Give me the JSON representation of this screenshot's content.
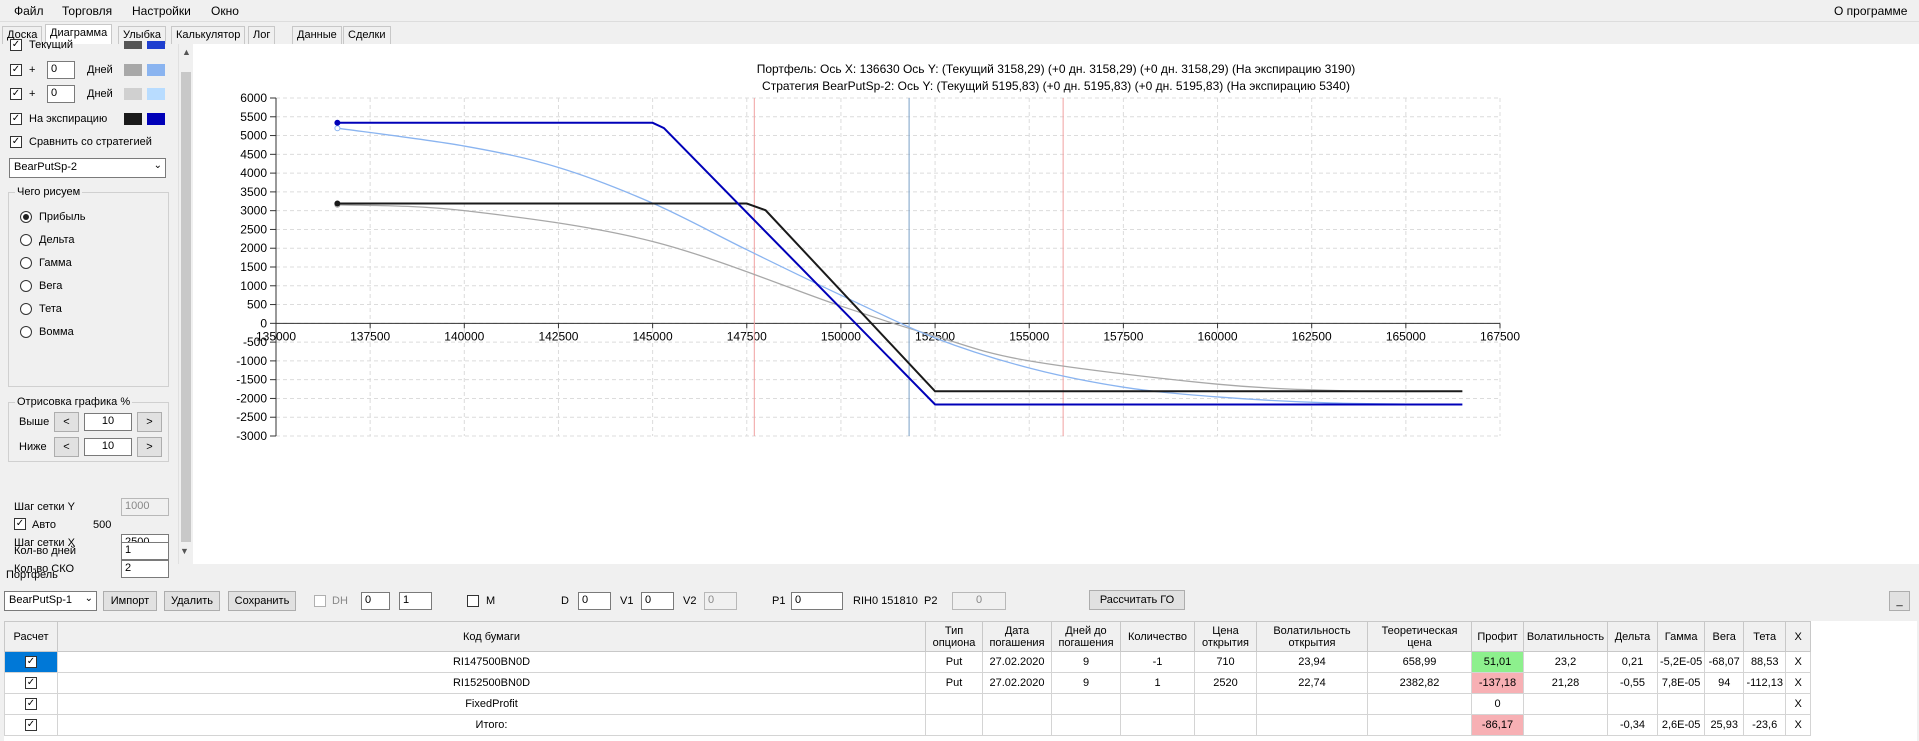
{
  "menu": {
    "items": [
      "Файл",
      "Торговля",
      "Настройки",
      "Окно"
    ],
    "about": "О программе"
  },
  "tabs": [
    "Доска",
    "Диаграмма",
    "Улыбка",
    "Калькулятор",
    "Лог",
    "Данные",
    "Сделки"
  ],
  "active_tab": "Диаграмма",
  "left_panel": {
    "rows": [
      {
        "label": "Текущий",
        "checked": true,
        "color_a": "#555555",
        "color_b": "#1f3fcf"
      },
      {
        "plus": "+",
        "days": "0",
        "days_label": "Дней",
        "checked": true,
        "color_a": "#a8a8a8",
        "color_b": "#8ab4f0"
      },
      {
        "plus": "+",
        "days": "0",
        "days_label": "Дней",
        "checked": true,
        "color_a": "#d0d0d0",
        "color_b": "#b8dcff"
      },
      {
        "label": "На экспирацию",
        "checked": true,
        "color_a": "#1a1a1a",
        "color_b": "#0000b8"
      }
    ],
    "compare_label": "Сравнить со стратегией",
    "strategy_select": "BearPutSp-2",
    "draw_group_title": "Чего рисуем",
    "draw_options": [
      "Прибыль",
      "Дельта",
      "Гамма",
      "Вега",
      "Тета",
      "Вомма"
    ],
    "draw_selected": "Прибыль",
    "render_group_title": "Отрисовка графика %",
    "above_label": "Выше",
    "above_value": "10",
    "below_label": "Ниже",
    "below_value": "10",
    "prev": "<",
    "next": ">",
    "grid_y_label": "Шаг сетки Y",
    "grid_y_value": "1000",
    "auto_label": "Авто",
    "auto_value": "500",
    "grid_x_label": "Шаг сетки X",
    "grid_x_value": "2500",
    "sko_label": "Кол-во СКО",
    "sko_value": "2",
    "days_label": "Кол-во дней",
    "days_value": "1"
  },
  "chart_header": {
    "line1": "Портфель: Ось X: 136630 Ось Y:  (Текущий 3158,29)  (+0 дн. 3158,29)  (+0 дн. 3158,29)  (На экспирацию 3190)",
    "line2": "Стратегия BearPutSp-2:  Ось Y:  (Текущий 5195,83)  (+0 дн. 5195,83)  (+0 дн. 5195,83)  (На экспирацию 5340)"
  },
  "chart_data": {
    "type": "line",
    "xlim": [
      135000,
      167500
    ],
    "ylim": [
      -3000,
      6000
    ],
    "x_ticks": [
      135000,
      137500,
      140000,
      142500,
      145000,
      147500,
      150000,
      152500,
      155000,
      157500,
      160000,
      162500,
      165000,
      167500
    ],
    "y_ticks": [
      6000,
      5500,
      5000,
      4500,
      4000,
      3500,
      3000,
      2500,
      2000,
      1500,
      1000,
      500,
      0,
      -500,
      -1000,
      -1500,
      -2000,
      -2500,
      -3000
    ],
    "grid": true,
    "vertical_markers": [
      {
        "x": 147700,
        "color": "#f0a0a0"
      },
      {
        "x": 151810,
        "color": "#7aa0c8"
      },
      {
        "x": 155900,
        "color": "#f0a0a0"
      }
    ],
    "series": [
      {
        "color": "#1a1a1a",
        "style": "expiration-portfolio",
        "x": [
          136630,
          147500,
          148000,
          152500,
          166500
        ],
        "y": [
          3190,
          3190,
          3010,
          -1810,
          -1810
        ]
      },
      {
        "color": "#0000b8",
        "style": "expiration-strategy",
        "x": [
          136630,
          145000,
          145300,
          152500,
          166500
        ],
        "y": [
          5340,
          5340,
          5200,
          -2160,
          -2160
        ]
      },
      {
        "color": "#a8a8a8",
        "style": "current-portfolio",
        "x": [
          136630,
          140000,
          145000,
          150000,
          152500,
          155000,
          160000,
          163500,
          166500
        ],
        "y": [
          3158,
          3000,
          2180,
          460,
          -340,
          -1000,
          -1620,
          -1800,
          -1810
        ]
      },
      {
        "color": "#8ab4f0",
        "style": "current-strategy",
        "x": [
          136630,
          140000,
          142500,
          145000,
          147500,
          150000,
          152500,
          155000,
          157500,
          160000,
          163000,
          166500
        ],
        "y": [
          5196,
          4720,
          4150,
          3200,
          1960,
          750,
          -390,
          -1190,
          -1700,
          -1960,
          -2120,
          -2160
        ]
      }
    ]
  },
  "portfolio": {
    "label": "Портфель",
    "select": "BearPutSp-1",
    "import": "Импорт",
    "delete": "Удалить",
    "save": "Сохранить",
    "dh": "DH",
    "spin1": "0",
    "spin2": "1",
    "m": "M",
    "d": "D",
    "d_val": "0",
    "v1": "V1",
    "v1_val": "0",
    "v2": "V2",
    "v2_val": "0",
    "p1": "P1",
    "p1_val": "0",
    "ticker": "RIH0 151810",
    "p2": "P2",
    "p2_val": "0",
    "calc_go": "Рассчитать ГО",
    "minimize": "_"
  },
  "table": {
    "headers": [
      "Расчет",
      "Код бумаги",
      "Тип опциона",
      "Дата погашения",
      "Дней до погашения",
      "Количество",
      "Цена открытия",
      "Волатильность открытия",
      "Теоретическая цена",
      "Профит",
      "Волатильность",
      "Дельта",
      "Гамма",
      "Вега",
      "Тета",
      "X"
    ],
    "rows": [
      [
        "",
        "RI147500BN0D",
        "Put",
        "27.02.2020",
        "9",
        "-1",
        "710",
        "23,94",
        "658,99",
        "51,01",
        "23,2",
        "0,21",
        "-5,2E-05",
        "-68,07",
        "88,53",
        "X"
      ],
      [
        "",
        "RI152500BN0D",
        "Put",
        "27.02.2020",
        "9",
        "1",
        "2520",
        "22,74",
        "2382,82",
        "-137,18",
        "21,28",
        "-0,55",
        "7,8E-05",
        "94",
        "-112,13",
        "X"
      ],
      [
        "",
        "FixedProfit",
        "",
        "",
        "",
        "",
        "",
        "",
        "",
        "0",
        "",
        "",
        "",
        "",
        "",
        "X"
      ],
      [
        "",
        "Итого:",
        "",
        "",
        "",
        "",
        "",
        "",
        "",
        "-86,17",
        "",
        "-0,34",
        "2,6E-05",
        "25,93",
        "-23,6",
        "X"
      ]
    ]
  }
}
